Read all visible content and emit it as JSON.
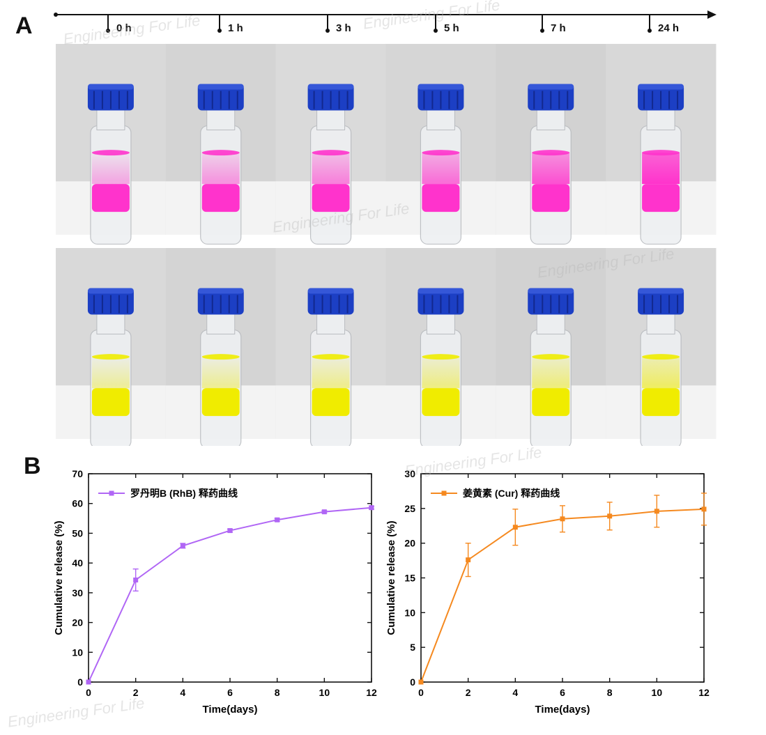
{
  "panel_a_label": "A",
  "panel_b_label": "B",
  "watermark_text": "Engineering For Life",
  "timepoints": [
    "0 h",
    "1 h",
    "3 h",
    "5 h",
    "7 h",
    "24 h"
  ],
  "vial_colors": {
    "rhb": "#ff33cc",
    "cur": "#f0ec00",
    "cap": "#1c3fc4",
    "background": "#d6d6d6"
  },
  "chart_data": [
    {
      "type": "line",
      "x": [
        0,
        2,
        4,
        6,
        8,
        10,
        12
      ],
      "series": [
        {
          "name": "罗丹明B (RhB) 释药曲线",
          "values": [
            0,
            34.3,
            45.8,
            50.9,
            54.5,
            57.2,
            58.6
          ],
          "errors": [
            0,
            3.7,
            0.8,
            0.5,
            0.5,
            0.4,
            0.5
          ],
          "color": "#b066f5",
          "marker": "square"
        }
      ],
      "xlabel": "Time(days)",
      "ylabel": "Cumulative release (%)",
      "xlim": [
        0,
        12
      ],
      "ylim": [
        0,
        70
      ],
      "xticks": [
        0,
        2,
        4,
        6,
        8,
        10,
        12
      ],
      "yticks": [
        0,
        10,
        20,
        30,
        40,
        50,
        60,
        70
      ],
      "grid": false,
      "legend_position": "top-left"
    },
    {
      "type": "line",
      "x": [
        0,
        2,
        4,
        6,
        8,
        10,
        12
      ],
      "series": [
        {
          "name": "姜黄素 (Cur) 释药曲线",
          "values": [
            0,
            17.6,
            22.3,
            23.5,
            23.9,
            24.6,
            24.9
          ],
          "errors": [
            0,
            2.4,
            2.6,
            1.9,
            2.0,
            2.3,
            2.3
          ],
          "color": "#f5891f",
          "marker": "square"
        }
      ],
      "xlabel": "Time(days)",
      "ylabel": "Cumulative release (%)",
      "xlim": [
        0,
        12
      ],
      "ylim": [
        0,
        30
      ],
      "xticks": [
        0,
        2,
        4,
        6,
        8,
        10,
        12
      ],
      "yticks": [
        0,
        5,
        10,
        15,
        20,
        25,
        30
      ],
      "grid": false,
      "legend_position": "top-left"
    }
  ]
}
